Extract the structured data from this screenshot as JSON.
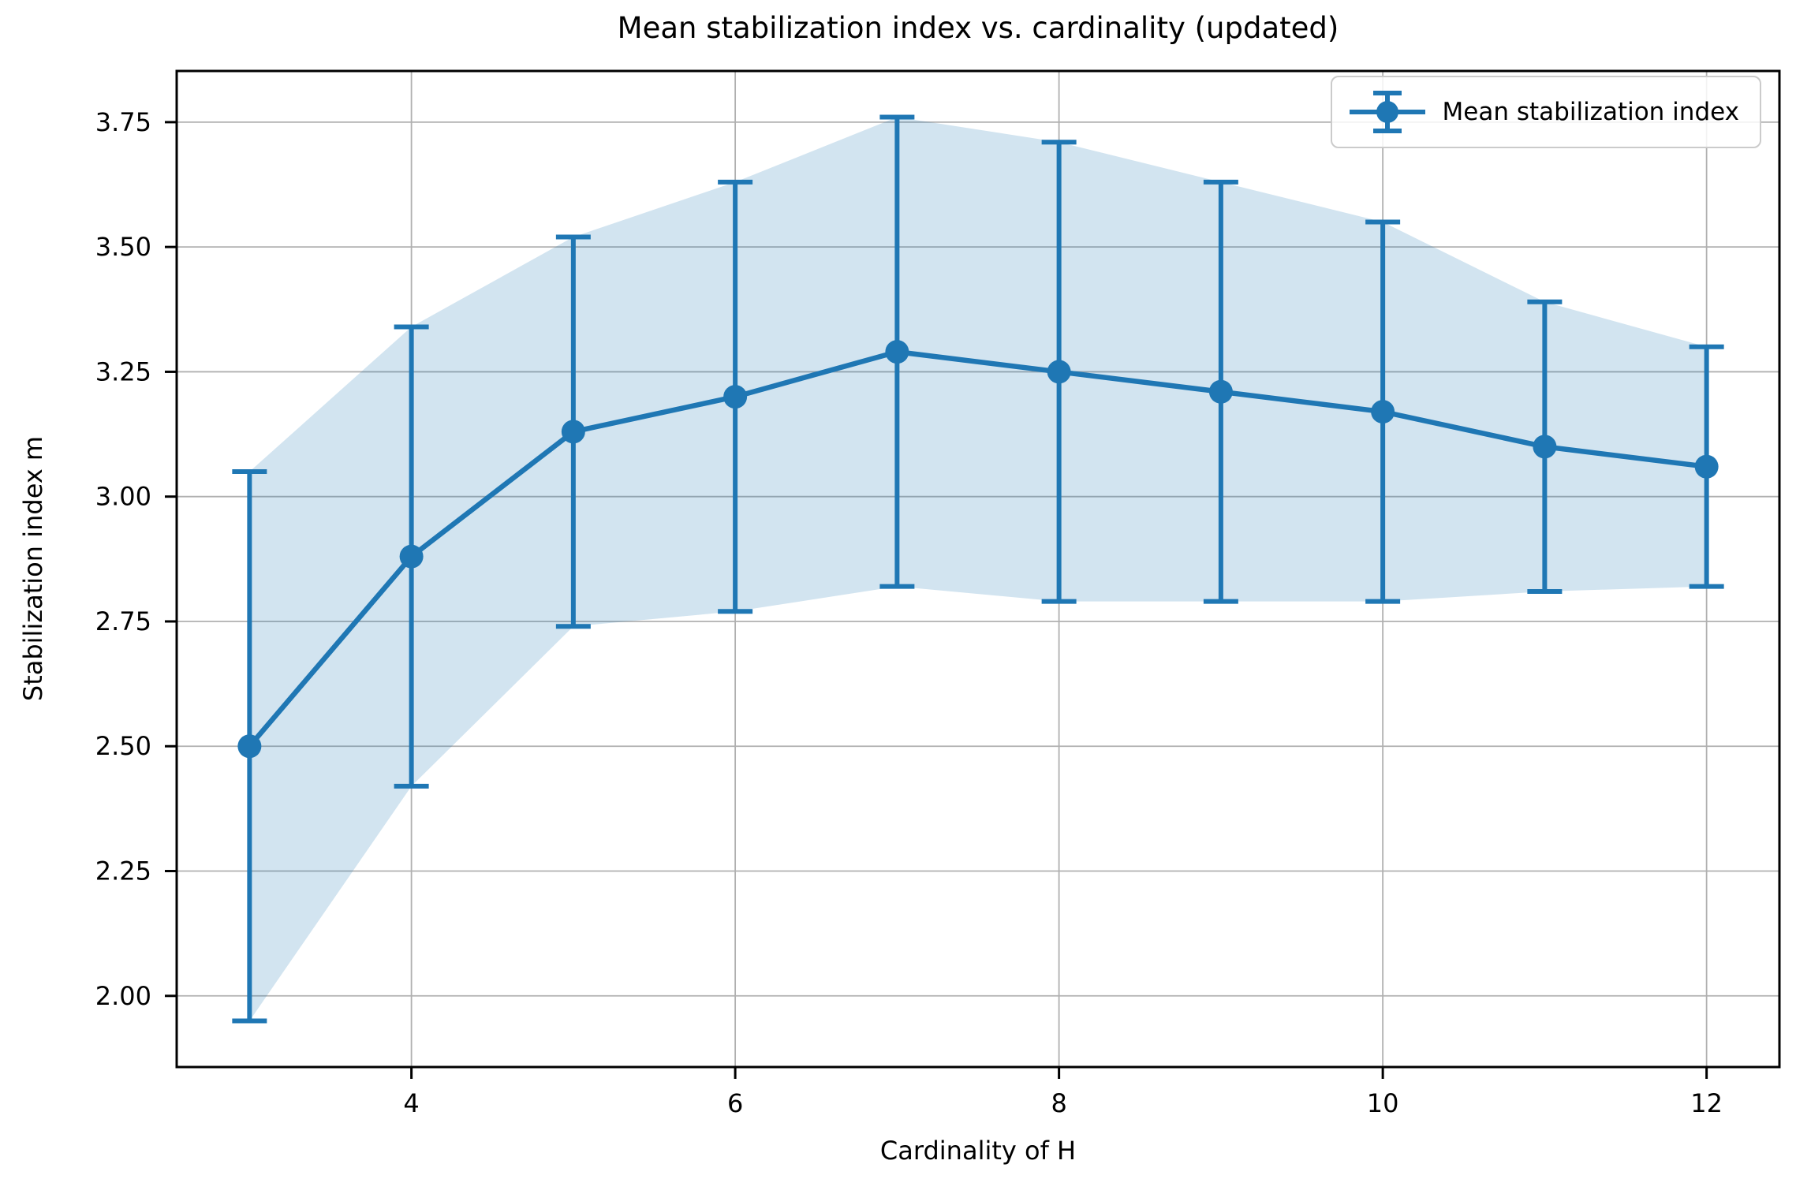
{
  "chart_data": {
    "type": "line",
    "title": "Mean stabilization index vs. cardinality (updated)",
    "xlabel": "Cardinality of H",
    "ylabel": "Stabilization index m",
    "legend": {
      "label": "Mean stabilization index",
      "position": "upper right"
    },
    "x": [
      3,
      4,
      5,
      6,
      7,
      8,
      9,
      10,
      11,
      12
    ],
    "series": [
      {
        "name": "Mean stabilization index",
        "values": [
          2.5,
          2.88,
          3.13,
          3.2,
          3.29,
          3.25,
          3.21,
          3.17,
          3.1,
          3.06
        ],
        "yerr": [
          0.55,
          0.46,
          0.39,
          0.43,
          0.47,
          0.46,
          0.42,
          0.38,
          0.29,
          0.24
        ]
      }
    ],
    "band_upper": [
      3.05,
      3.34,
      3.52,
      3.63,
      3.76,
      3.71,
      3.63,
      3.55,
      3.39,
      3.3
    ],
    "band_lower": [
      1.95,
      2.42,
      2.74,
      2.77,
      2.82,
      2.79,
      2.79,
      2.79,
      2.81,
      2.82
    ],
    "xlim": [
      2.55,
      12.45
    ],
    "ylim": [
      1.8575,
      3.8525
    ],
    "xticks": [
      "4",
      "6",
      "8",
      "10",
      "12"
    ],
    "yticks": [
      "2.00",
      "2.25",
      "2.50",
      "2.75",
      "3.00",
      "3.25",
      "3.50",
      "3.75"
    ],
    "grid": true,
    "colors": {
      "line": "#1f77b4",
      "band": "#1f77b4",
      "band_opacity": 0.2,
      "grid": "#b0b0b0",
      "spine": "#000000",
      "text": "#000000"
    }
  }
}
